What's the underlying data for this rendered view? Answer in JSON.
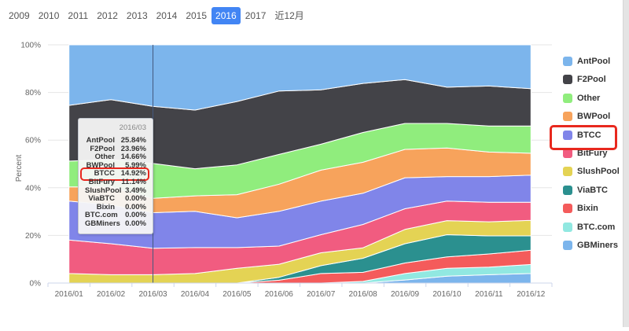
{
  "tabs": {
    "items": [
      {
        "label": "2009",
        "selected": false
      },
      {
        "label": "2010",
        "selected": false
      },
      {
        "label": "2011",
        "selected": false
      },
      {
        "label": "2012",
        "selected": false
      },
      {
        "label": "2013",
        "selected": false
      },
      {
        "label": "2014",
        "selected": false
      },
      {
        "label": "2015",
        "selected": false
      },
      {
        "label": "2016",
        "selected": true
      },
      {
        "label": "2017",
        "selected": false
      },
      {
        "label": "近12月",
        "selected": false
      }
    ]
  },
  "chart_data": {
    "type": "area",
    "stacking": "percent",
    "title": "",
    "xlabel": "",
    "ylabel": "Percent",
    "ylim": [
      0,
      100
    ],
    "yticks": [
      {
        "pct": 0,
        "label": "0%"
      },
      {
        "pct": 20,
        "label": "20%"
      },
      {
        "pct": 40,
        "label": "40%"
      },
      {
        "pct": 60,
        "label": "60%"
      },
      {
        "pct": 80,
        "label": "80%"
      },
      {
        "pct": 100,
        "label": "100%"
      }
    ],
    "grid": true,
    "legend_position": "right",
    "stack_order": "legend order, AntPool on top / GBMiners at bottom",
    "categories": [
      "2016/01",
      "2016/02",
      "2016/03",
      "2016/04",
      "2016/05",
      "2016/06",
      "2016/07",
      "2016/08",
      "2016/09",
      "2016/10",
      "2016/11",
      "2016/12"
    ],
    "series": [
      {
        "name": "AntPool",
        "color": "#7cb5ec",
        "values": [
          25.4,
          23.0,
          25.84,
          27.4,
          23.8,
          19.4,
          18.9,
          16.2,
          14.6,
          17.8,
          17.3,
          18.4
        ]
      },
      {
        "name": "F2Pool",
        "color": "#434348",
        "values": [
          23.4,
          25.2,
          23.96,
          24.6,
          26.6,
          26.6,
          22.8,
          20.6,
          18.4,
          15.2,
          16.8,
          15.7
        ]
      },
      {
        "name": "Other",
        "color": "#90ed7d",
        "values": [
          10.8,
          11.5,
          14.66,
          11.4,
          12.5,
          12.5,
          10.9,
          12.5,
          10.9,
          10.3,
          10.9,
          11.4
        ]
      },
      {
        "name": "BWPool",
        "color": "#f7a35c",
        "values": [
          6.0,
          7.5,
          5.99,
          6.5,
          9.7,
          11.4,
          13.0,
          13.0,
          11.9,
          12.0,
          10.3,
          9.2
        ]
      },
      {
        "name": "BTCC",
        "color": "#8085e9",
        "values": [
          16.3,
          16.3,
          14.92,
          15.2,
          12.5,
          14.6,
          14.1,
          13.1,
          13.0,
          10.3,
          10.8,
          11.4
        ]
      },
      {
        "name": "BitFury",
        "color": "#f15c80",
        "values": [
          14.1,
          13.0,
          11.14,
          10.9,
          8.7,
          7.6,
          7.6,
          9.8,
          8.7,
          8.2,
          8.2,
          7.6
        ]
      },
      {
        "name": "SlushPool",
        "color": "#e4d354",
        "values": [
          4.0,
          3.5,
          3.49,
          4.0,
          6.2,
          5.5,
          5.4,
          4.4,
          6.0,
          5.9,
          5.9,
          6.5
        ]
      },
      {
        "name": "ViaBTC",
        "color": "#2b908f",
        "values": [
          0,
          0,
          0,
          0,
          0,
          1.2,
          3.3,
          5.9,
          8.1,
          9.3,
          7.6,
          6.0
        ]
      },
      {
        "name": "Bixin",
        "color": "#f45b5b",
        "values": [
          0,
          0,
          0,
          0,
          0,
          1.2,
          4.0,
          3.8,
          4.4,
          4.8,
          5.5,
          6.0
        ]
      },
      {
        "name": "BTC.com",
        "color": "#91e8e1",
        "values": [
          0,
          0,
          0,
          0,
          0,
          0,
          0,
          0.7,
          2.7,
          3.3,
          3.2,
          3.8
        ]
      },
      {
        "name": "GBMiners",
        "color": "#7cb5ec",
        "values": [
          0,
          0,
          0,
          0,
          0,
          0,
          0,
          0,
          1.3,
          2.9,
          3.5,
          4.0
        ]
      }
    ]
  },
  "tooltip": {
    "title": "2016/03",
    "anchor_category": "2016/03",
    "anchor_index": 2,
    "rows": [
      {
        "name": "AntPool",
        "value": "25.84%"
      },
      {
        "name": "F2Pool",
        "value": "23.96%"
      },
      {
        "name": "Other",
        "value": "14.66%"
      },
      {
        "name": "BWPool",
        "value": "5.99%"
      },
      {
        "name": "BTCC",
        "value": "14.92%"
      },
      {
        "name": "BitFury",
        "value": "11.14%"
      },
      {
        "name": "SlushPool",
        "value": "3.49%"
      },
      {
        "name": "ViaBTC",
        "value": "0.00%"
      },
      {
        "name": "Bixin",
        "value": "0.00%"
      },
      {
        "name": "BTC.com",
        "value": "0.00%"
      },
      {
        "name": "GBMiners",
        "value": "0.00%"
      }
    ]
  },
  "legend": {
    "highlighted_item": "BTCC"
  },
  "annotations": {
    "tooltip_highlighted_row": "BTCC",
    "highlight_color": "#e8281e"
  },
  "colors": {
    "selected_tab_bg": "#4285f4",
    "grid_line": "#e6e6e6",
    "axis_line": "#ccd6eb",
    "axis_text": "#666666",
    "crosshair": "#44597e"
  }
}
